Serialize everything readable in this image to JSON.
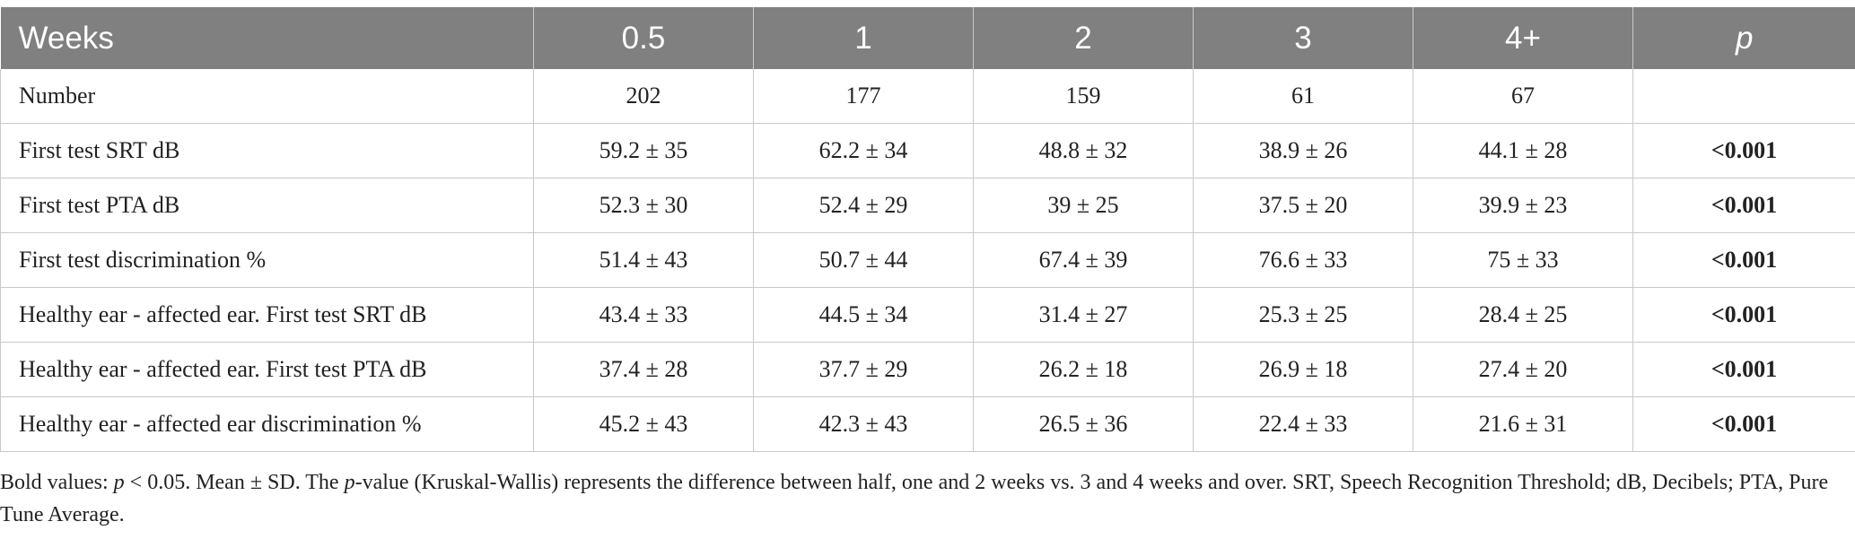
{
  "table": {
    "headers": [
      "Weeks",
      "0.5",
      "1",
      "2",
      "3",
      "4+",
      "p"
    ],
    "rows": [
      {
        "label": "Number",
        "cells": [
          "202",
          "177",
          "159",
          "61",
          "67",
          ""
        ]
      },
      {
        "label": "First test SRT dB",
        "cells": [
          "59.2 ± 35",
          "62.2 ± 34",
          "48.8 ± 32",
          "38.9 ± 26",
          "44.1 ± 28",
          "<0.001"
        ]
      },
      {
        "label": "First test PTA dB",
        "cells": [
          "52.3 ± 30",
          "52.4 ± 29",
          "39 ± 25",
          "37.5 ± 20",
          "39.9 ± 23",
          "<0.001"
        ]
      },
      {
        "label": "First test discrimination %",
        "cells": [
          "51.4 ± 43",
          "50.7 ± 44",
          "67.4 ± 39",
          "76.6 ± 33",
          "75 ± 33",
          "<0.001"
        ]
      },
      {
        "label": "Healthy ear - affected ear. First test SRT dB",
        "cells": [
          "43.4 ± 33",
          "44.5 ± 34",
          "31.4 ± 27",
          "25.3 ± 25",
          "28.4 ± 25",
          "<0.001"
        ]
      },
      {
        "label": "Healthy ear - affected ear. First test PTA dB",
        "cells": [
          "37.4 ± 28",
          "37.7 ± 29",
          "26.2 ± 18",
          "26.9 ± 18",
          "27.4 ± 20",
          "<0.001"
        ]
      },
      {
        "label": "Healthy ear - affected ear discrimination %",
        "cells": [
          "45.2 ± 43",
          "42.3 ± 43",
          "26.5 ± 36",
          "22.4 ± 33",
          "21.6 ± 31",
          "<0.001"
        ]
      }
    ]
  },
  "footnote": {
    "part1": "Bold values: ",
    "p_symbol": "p",
    "part2": " < 0.05. Mean ± SD. The ",
    "p_symbol2": "p",
    "part3": "-value (Kruskal-Wallis) represents the difference between half, one and 2 weeks vs. 3 and 4 weeks and over. SRT, Speech Recognition Threshold; dB, Decibels; PTA, Pure Tune Average."
  }
}
